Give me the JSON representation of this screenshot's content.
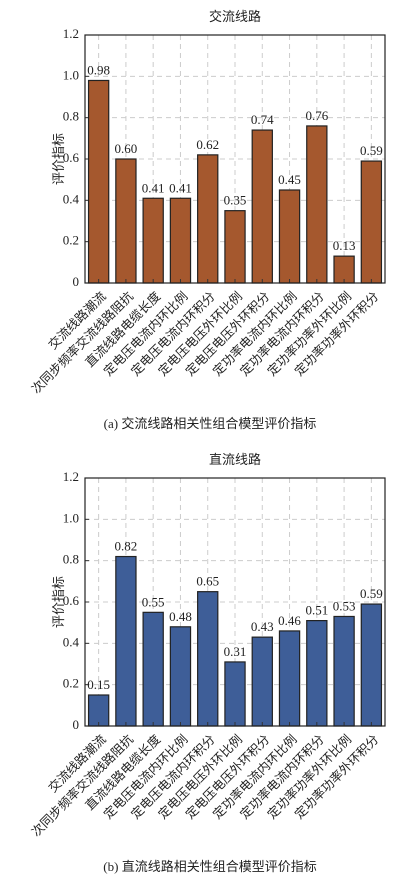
{
  "chart_data": [
    {
      "type": "bar",
      "title": "交流线路",
      "caption": "(a) 交流线路相关性组合模型评价指标",
      "ylabel": "评价指标",
      "categories": [
        "交流线路潮流",
        "次同步频率交流线路阻抗",
        "直流线路电缆长度",
        "定电压电流内环比例",
        "定电压电流内环积分",
        "定电压电压外环比例",
        "定电压电压外环积分",
        "定功率电流内环比例",
        "定功率电流内环积分",
        "定功率功率外环比例",
        "定功率功率外环积分"
      ],
      "values": [
        0.98,
        0.6,
        0.41,
        0.41,
        0.62,
        0.35,
        0.74,
        0.45,
        0.76,
        0.13,
        0.59
      ],
      "value_labels": [
        "0.98",
        "0.60",
        "0.41",
        "0.41",
        "0.62",
        "0.35",
        "0.74",
        "0.45",
        "0.76",
        "0.13",
        "0.59"
      ],
      "color": "#a5582e",
      "ylim": [
        0,
        1.2
      ],
      "yticks": [
        0,
        0.2,
        0.4,
        0.6,
        0.8,
        {
          "value": 1,
          "label": "1.0"
        },
        1.2
      ],
      "grid": true
    },
    {
      "type": "bar",
      "title": "直流线路",
      "caption": "(b) 直流线路相关性组合模型评价指标",
      "ylabel": "评价指标",
      "categories": [
        "交流线路潮流",
        "次同步频率交流线路阻抗",
        "直流线路电缆长度",
        "定电压电流内环比例",
        "定电压电流内环积分",
        "定电压电压外环比例",
        "定电压电压外环积分",
        "定功率电流内环比例",
        "定功率电流内环积分",
        "定功率功率外环比例",
        "定功率功率外环积分"
      ],
      "values": [
        0.15,
        0.82,
        0.55,
        0.48,
        0.65,
        0.31,
        0.43,
        0.46,
        0.51,
        0.53,
        0.59
      ],
      "value_labels": [
        "0.15",
        "0.82",
        "0.55",
        "0.48",
        "0.65",
        "0.31",
        "0.43",
        "0.46",
        "0.51",
        "0.53",
        "0.59"
      ],
      "color": "#3e5e98",
      "ylim": [
        0,
        1.2
      ],
      "yticks": [
        0,
        0.2,
        0.4,
        0.6,
        0.8,
        {
          "value": 1,
          "label": "1.0"
        },
        1.2
      ],
      "grid": true
    }
  ]
}
